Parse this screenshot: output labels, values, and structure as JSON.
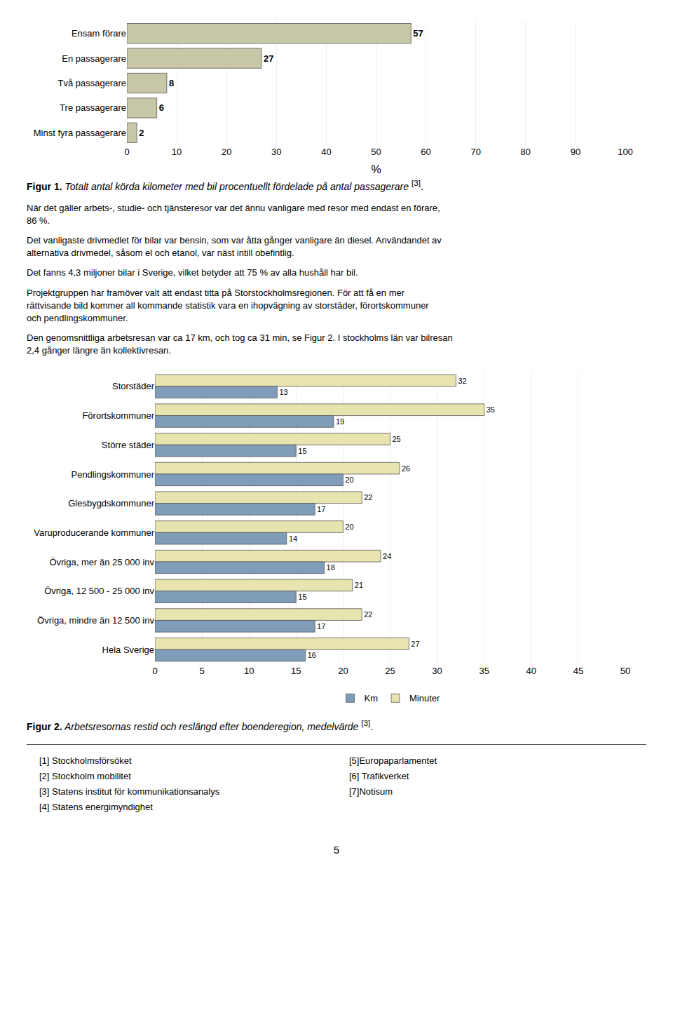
{
  "chart_data": [
    {
      "type": "bar",
      "orientation": "horizontal",
      "categories": [
        "Ensam förare",
        "En passagerare",
        "Två passagerare",
        "Tre passagerare",
        "Minst fyra passagerare"
      ],
      "values": [
        57,
        27,
        8,
        6,
        2
      ],
      "color": "#c8c8a9",
      "xlabel": "%",
      "xlim": [
        0,
        100
      ],
      "xticks": [
        0,
        10,
        20,
        30,
        40,
        50,
        60,
        70,
        80,
        90,
        100
      ],
      "grid": true,
      "data_labels": true,
      "caption": [
        "Figur 1.",
        " Totalt antal körda kilometer med bil procentuellt fördelade på antal passagerare ",
        "[3]",
        "."
      ]
    },
    {
      "type": "bar",
      "orientation": "horizontal",
      "categories": [
        "Storstäder",
        "Förortskommuner",
        "Större städer",
        "Pendlingskommuner",
        "Glesbygdskommuner",
        "Varuproducerande kommuner",
        "Övriga, mer än 25 000 inv",
        "Övriga, 12 500 - 25 000 inv",
        "Övriga, mindre än 12 500 inv",
        "Hela Sverige"
      ],
      "series": [
        {
          "name": "Km",
          "color": "#7f9db9",
          "values": [
            13,
            19,
            15,
            20,
            17,
            14,
            18,
            15,
            17,
            16
          ]
        },
        {
          "name": "Minuter",
          "color": "#e8e4b0",
          "values": [
            32,
            35,
            25,
            26,
            22,
            20,
            24,
            21,
            22,
            27
          ]
        }
      ],
      "xlim": [
        0,
        50
      ],
      "xticks": [
        0,
        5,
        10,
        15,
        20,
        25,
        30,
        35,
        40,
        45,
        50
      ],
      "grid": true,
      "data_labels": true,
      "legend": "bottom",
      "caption": [
        "Figur 2.",
        " Arbetsresornas restid och reslängd efter boenderegion, medelvärde ",
        "[3]",
        "."
      ]
    }
  ],
  "text_paragraphs": [
    "När det gäller arbets-, studie- och tjänsteresor var det ännu vanligare med resor med endast en förare,\n86 %.",
    "Det vanligaste drivmedlet för bilar var bensin, som var åtta gånger vanligare än diesel. Användandet av\nalternativa drivmedel, såsom el och etanol, var näst intill obefintlig.",
    "Det fanns 4,3 miljoner bilar i Sverige, vilket betyder att 75 % av alla hushåll har bil.",
    "Projektgruppen har framöver valt att endast titta på Storstockholmsregionen. För att få en mer\nrättvisande bild kommer all kommande statistik vara en ihopvägning av storstäder, förortskommuner\noch pendlingskommuner.",
    "Den genomsnittliga arbetsresan var ca 17 km, och tog ca 31 min, se Figur 2. I stockholms län var bilresan\n2,4 gånger längre än kollektivresan."
  ],
  "references_left": [
    "[1] Stockholmsförsöket",
    "[2] Stockholm mobilitet",
    "[3] Statens institut för kommunikationsanalys",
    "[4] Statens energimyndighet"
  ],
  "references_right": [
    "[5]Europaparlamentet",
    "[6] Trafikverket",
    "[7]Notisum"
  ],
  "page_number": "5"
}
